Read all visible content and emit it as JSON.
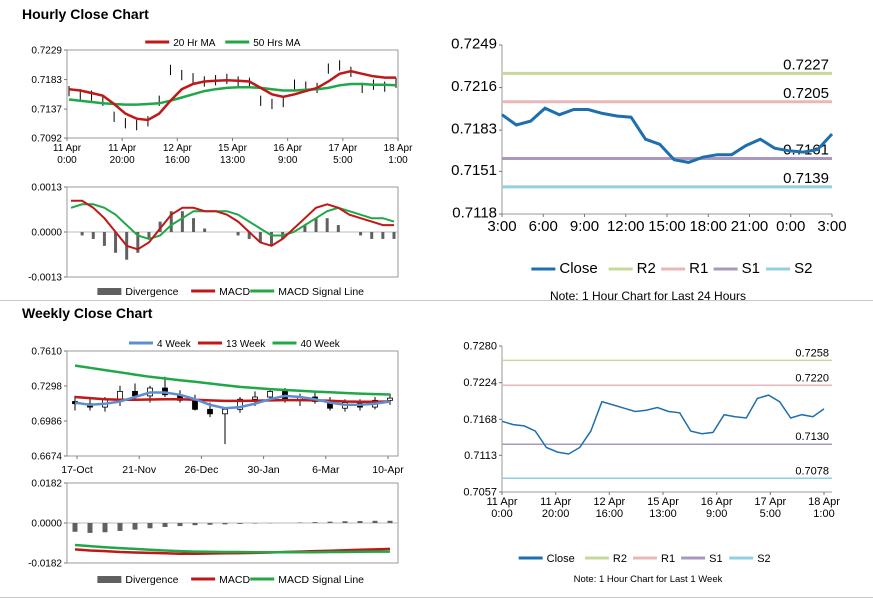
{
  "sections": {
    "hourly_title": "Hourly Close Chart",
    "weekly_title": "Weekly Close Chart"
  },
  "colors": {
    "close": "#1f6fae",
    "r2": "#c8d89c",
    "r1": "#e8b8b8",
    "s1": "#a898c0",
    "s2": "#90d0e0",
    "ma_red": "#c01818",
    "ma_green": "#20a848",
    "ma_blue": "#5b8fd0",
    "divergence": "#606060",
    "candle": "#000000"
  },
  "chart_data": [
    {
      "id": "hourly_price_ma",
      "type": "line",
      "legend": [
        "20 Hr MA",
        "50 Hrs MA"
      ],
      "legend_position": "top",
      "y_ticks": [
        "0.7229",
        "0.7183",
        "0.7137",
        "0.7092"
      ],
      "ylim": [
        0.7092,
        0.7229
      ],
      "x_ticks": [
        [
          "11 Apr",
          "0:00"
        ],
        [
          "11 Apr",
          "20:00"
        ],
        [
          "12 Apr",
          "16:00"
        ],
        [
          "15 Apr",
          "13:00"
        ],
        [
          "16 Apr",
          "9:00"
        ],
        [
          "17 Apr",
          "5:00"
        ],
        [
          "18 Apr",
          "1:00"
        ]
      ],
      "price": [
        0.7165,
        0.716,
        0.7158,
        0.715,
        0.7125,
        0.7115,
        0.7112,
        0.7118,
        0.715,
        0.7198,
        0.719,
        0.7185,
        0.718,
        0.7182,
        0.7184,
        0.718,
        0.7178,
        0.715,
        0.7145,
        0.7148,
        0.7175,
        0.7172,
        0.717,
        0.72,
        0.7205,
        0.7195,
        0.717,
        0.7175,
        0.7172,
        0.7178
      ],
      "series": [
        {
          "name": "20 Hr MA",
          "values": [
            0.7168,
            0.7166,
            0.7162,
            0.7158,
            0.7145,
            0.713,
            0.7122,
            0.712,
            0.713,
            0.715,
            0.7168,
            0.7176,
            0.718,
            0.7181,
            0.7182,
            0.7181,
            0.718,
            0.717,
            0.716,
            0.7156,
            0.716,
            0.7165,
            0.717,
            0.718,
            0.7192,
            0.7196,
            0.7192,
            0.7188,
            0.7186,
            0.7186
          ]
        },
        {
          "name": "50 Hrs MA",
          "values": [
            0.7152,
            0.715,
            0.7148,
            0.7146,
            0.7145,
            0.7144,
            0.7144,
            0.7145,
            0.7146,
            0.715,
            0.7155,
            0.716,
            0.7165,
            0.7168,
            0.717,
            0.7171,
            0.7171,
            0.717,
            0.7168,
            0.7166,
            0.7166,
            0.7167,
            0.7168,
            0.717,
            0.7174,
            0.7176,
            0.7176,
            0.7175,
            0.7175,
            0.7174
          ]
        }
      ]
    },
    {
      "id": "hourly_macd",
      "type": "line",
      "legend": [
        "Divergence",
        "MACD",
        "MACD Signal Line"
      ],
      "legend_position": "bottom",
      "y_ticks": [
        "0.0013",
        "0.0000",
        "-0.0013"
      ],
      "ylim": [
        -0.0013,
        0.0013
      ],
      "series": [
        {
          "name": "Divergence",
          "values": [
            0.0,
            -0.0001,
            -0.0002,
            -0.0004,
            -0.0006,
            -0.0008,
            -0.0006,
            -0.0002,
            0.0003,
            0.0006,
            0.0006,
            0.0004,
            0.0001,
            0.0,
            0.0,
            -0.0001,
            -0.0002,
            -0.0003,
            -0.0004,
            -0.0002,
            0.0,
            0.0002,
            0.0004,
            0.0004,
            0.0002,
            0.0,
            -0.0001,
            -0.0002,
            -0.0002,
            -0.0002
          ]
        },
        {
          "name": "MACD",
          "values": [
            0.0009,
            0.0009,
            0.0007,
            0.0004,
            0.0,
            -0.0004,
            -0.0005,
            -0.0003,
            0.0001,
            0.0005,
            0.0007,
            0.0007,
            0.0006,
            0.0006,
            0.0005,
            0.0003,
            0.0,
            -0.0003,
            -0.0004,
            -0.0002,
            0.0001,
            0.0004,
            0.0007,
            0.0008,
            0.0007,
            0.0005,
            0.0004,
            0.0003,
            0.0002,
            0.0002
          ]
        },
        {
          "name": "MACD Signal Line",
          "values": [
            0.0007,
            0.0008,
            0.0008,
            0.0007,
            0.0005,
            0.0002,
            -0.0001,
            -0.0002,
            -0.0001,
            0.0002,
            0.0004,
            0.0006,
            0.0006,
            0.0006,
            0.0006,
            0.0005,
            0.0003,
            0.0001,
            -0.0001,
            -0.0001,
            0.0,
            0.0002,
            0.0004,
            0.0006,
            0.0007,
            0.0006,
            0.0005,
            0.0004,
            0.0004,
            0.0003
          ]
        }
      ]
    },
    {
      "id": "hourly_levels",
      "type": "line",
      "y_ticks": [
        "0.7249",
        "0.7216",
        "0.7183",
        "0.7151",
        "0.7118"
      ],
      "ylim": [
        0.7118,
        0.7249
      ],
      "x_ticks": [
        "3:00",
        "6:00",
        "9:00",
        "12:00",
        "15:00",
        "18:00",
        "21:00",
        "0:00",
        "3:00"
      ],
      "legend": [
        "Close",
        "R2",
        "R1",
        "S1",
        "S2"
      ],
      "legend_position": "bottom",
      "note": "Note: 1 Hour Chart for Last 24 Hours",
      "levels": [
        {
          "name": "R2",
          "value": 0.7227,
          "label": "0.7227"
        },
        {
          "name": "R1",
          "value": 0.7205,
          "label": "0.7205"
        },
        {
          "name": "S1",
          "value": 0.7161,
          "label": "0.7161"
        },
        {
          "name": "S2",
          "value": 0.7139,
          "label": "0.7139"
        }
      ],
      "series": [
        {
          "name": "Close",
          "values": [
            0.7195,
            0.7187,
            0.719,
            0.72,
            0.7195,
            0.7199,
            0.7199,
            0.7196,
            0.7194,
            0.7193,
            0.7176,
            0.7172,
            0.716,
            0.7158,
            0.7162,
            0.7164,
            0.7164,
            0.7171,
            0.7176,
            0.7169,
            0.7167,
            0.7166,
            0.7168,
            0.718
          ]
        }
      ]
    },
    {
      "id": "weekly_price_ma",
      "type": "line",
      "legend": [
        "4 Week",
        "13 Week",
        "40 Week"
      ],
      "legend_position": "top",
      "y_ticks": [
        "0.7610",
        "0.7298",
        "0.6986",
        "0.6674"
      ],
      "ylim": [
        0.6674,
        0.761
      ],
      "x_ticks": [
        "17-Oct",
        "21-Nov",
        "26-Dec",
        "30-Jan",
        "6-Mar",
        "10-Apr"
      ],
      "candles": [
        [
          0.716,
          0.721,
          0.708,
          0.714
        ],
        [
          0.714,
          0.72,
          0.708,
          0.711
        ],
        [
          0.711,
          0.72,
          0.707,
          0.718
        ],
        [
          0.718,
          0.73,
          0.712,
          0.725
        ],
        [
          0.725,
          0.732,
          0.718,
          0.721
        ],
        [
          0.721,
          0.73,
          0.715,
          0.728
        ],
        [
          0.728,
          0.738,
          0.72,
          0.722
        ],
        [
          0.722,
          0.726,
          0.715,
          0.717
        ],
        [
          0.717,
          0.722,
          0.708,
          0.709
        ],
        [
          0.709,
          0.715,
          0.702,
          0.705
        ],
        [
          0.705,
          0.71,
          0.678,
          0.709
        ],
        [
          0.709,
          0.72,
          0.706,
          0.718
        ],
        [
          0.718,
          0.725,
          0.712,
          0.72
        ],
        [
          0.72,
          0.727,
          0.716,
          0.725
        ],
        [
          0.725,
          0.728,
          0.715,
          0.717
        ],
        [
          0.717,
          0.723,
          0.712,
          0.72
        ],
        [
          0.72,
          0.725,
          0.714,
          0.716
        ],
        [
          0.716,
          0.72,
          0.708,
          0.71
        ],
        [
          0.71,
          0.718,
          0.707,
          0.715
        ],
        [
          0.715,
          0.718,
          0.708,
          0.711
        ],
        [
          0.711,
          0.72,
          0.709,
          0.717
        ],
        [
          0.717,
          0.723,
          0.713,
          0.719
        ]
      ],
      "series": [
        {
          "name": "4 Week",
          "values": [
            0.715,
            0.713,
            0.714,
            0.716,
            0.72,
            0.724,
            0.724,
            0.722,
            0.718,
            0.713,
            0.71,
            0.711,
            0.714,
            0.718,
            0.721,
            0.72,
            0.718,
            0.715,
            0.713,
            0.713,
            0.714,
            0.716
          ]
        },
        {
          "name": "13 Week",
          "values": [
            0.72,
            0.719,
            0.718,
            0.7175,
            0.7175,
            0.7178,
            0.718,
            0.718,
            0.7176,
            0.717,
            0.7165,
            0.7165,
            0.7166,
            0.717,
            0.7172,
            0.7172,
            0.717,
            0.7166,
            0.716,
            0.7158,
            0.7158,
            0.716
          ]
        },
        {
          "name": "40 Week",
          "values": [
            0.748,
            0.746,
            0.744,
            0.742,
            0.74,
            0.738,
            0.7365,
            0.735,
            0.7335,
            0.732,
            0.7305,
            0.729,
            0.728,
            0.727,
            0.7262,
            0.7255,
            0.7248,
            0.7242,
            0.7236,
            0.723,
            0.7226,
            0.7222
          ]
        }
      ]
    },
    {
      "id": "weekly_macd",
      "type": "line",
      "legend": [
        "Divergence",
        "MACD",
        "MACD Signal Line"
      ],
      "legend_position": "bottom",
      "y_ticks": [
        "0.0182",
        "0.0000",
        "-0.0182"
      ],
      "ylim": [
        -0.0182,
        0.0182
      ],
      "series": [
        {
          "name": "Divergence",
          "values": [
            -0.004,
            -0.0045,
            -0.0042,
            -0.0036,
            -0.003,
            -0.0024,
            -0.0018,
            -0.0014,
            -0.001,
            -0.0008,
            -0.0006,
            -0.0004,
            -0.0002,
            -0.0001,
            0.0,
            0.0002,
            0.0004,
            0.0006,
            0.0008,
            0.0009,
            0.001,
            0.001
          ]
        },
        {
          "name": "MACD",
          "values": [
            -0.012,
            -0.0125,
            -0.0128,
            -0.0132,
            -0.0134,
            -0.0136,
            -0.0138,
            -0.014,
            -0.014,
            -0.0139,
            -0.0138,
            -0.0137,
            -0.0136,
            -0.0134,
            -0.0132,
            -0.013,
            -0.0128,
            -0.0126,
            -0.0124,
            -0.0122,
            -0.012,
            -0.0118
          ]
        },
        {
          "name": "MACD Signal Line",
          "values": [
            -0.01,
            -0.0105,
            -0.011,
            -0.0114,
            -0.0118,
            -0.0122,
            -0.0125,
            -0.0128,
            -0.013,
            -0.0131,
            -0.0132,
            -0.0132,
            -0.0133,
            -0.0133,
            -0.0133,
            -0.0133,
            -0.0133,
            -0.0132,
            -0.0132,
            -0.0131,
            -0.013,
            -0.013
          ]
        }
      ]
    },
    {
      "id": "weekly_levels",
      "type": "line",
      "y_ticks": [
        "0.7280",
        "0.7224",
        "0.7168",
        "0.7113",
        "0.7057"
      ],
      "ylim": [
        0.7057,
        0.728
      ],
      "x_ticks": [
        [
          "11 Apr",
          "0:00"
        ],
        [
          "11 Apr",
          "20:00"
        ],
        [
          "12 Apr",
          "16:00"
        ],
        [
          "15 Apr",
          "13:00"
        ],
        [
          "16 Apr",
          "9:00"
        ],
        [
          "17 Apr",
          "5:00"
        ],
        [
          "18 Apr",
          "1:00"
        ]
      ],
      "legend": [
        "Close",
        "R2",
        "R1",
        "S1",
        "S2"
      ],
      "legend_position": "bottom",
      "note": "Note: 1 Hour Chart for Last 1 Week",
      "levels": [
        {
          "name": "R2",
          "value": 0.7258,
          "label": "0.7258"
        },
        {
          "name": "R1",
          "value": 0.722,
          "label": "0.7220"
        },
        {
          "name": "S1",
          "value": 0.713,
          "label": "0.7130"
        },
        {
          "name": "S2",
          "value": 0.7078,
          "label": "0.7078"
        }
      ],
      "series": [
        {
          "name": "Close",
          "values": [
            0.7165,
            0.716,
            0.7158,
            0.715,
            0.7125,
            0.7118,
            0.7115,
            0.7125,
            0.715,
            0.7195,
            0.719,
            0.7185,
            0.718,
            0.7182,
            0.7186,
            0.718,
            0.7178,
            0.715,
            0.7146,
            0.7148,
            0.7175,
            0.7172,
            0.717,
            0.72,
            0.7205,
            0.7195,
            0.717,
            0.7175,
            0.7172,
            0.7184
          ]
        }
      ]
    }
  ]
}
